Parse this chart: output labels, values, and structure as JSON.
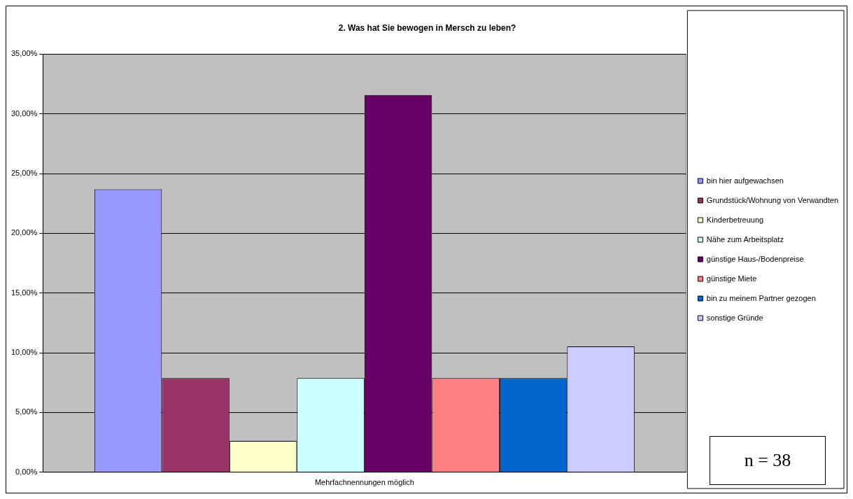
{
  "chart_data": {
    "type": "bar",
    "title": "2. Was hat Sie bewogen in Mersch zu leben?",
    "categories": [
      "Mehrfachnennungen möglich"
    ],
    "series": [
      {
        "name": "bin hier aufgewachsen",
        "color": "#9999ff",
        "values": [
          23.68
        ]
      },
      {
        "name": "Grundstück/Wohnung von Verwandten",
        "color": "#993366",
        "values": [
          7.89
        ]
      },
      {
        "name": "Kinderbetreuung",
        "color": "#ffffcc",
        "values": [
          2.63
        ]
      },
      {
        "name": "Nähe zum Arbeitsplatz",
        "color": "#ccffff",
        "values": [
          7.89
        ]
      },
      {
        "name": "günstige Haus-/Bodenpreise",
        "color": "#660066",
        "values": [
          31.58
        ]
      },
      {
        "name": "günstige Miete",
        "color": "#ff8080",
        "values": [
          7.89
        ]
      },
      {
        "name": "bin zu meinem Partner gezogen",
        "color": "#0066cc",
        "values": [
          7.89
        ]
      },
      {
        "name": "sonstige Gründe",
        "color": "#ccccff",
        "values": [
          10.53
        ]
      }
    ],
    "ylim": [
      0,
      35
    ],
    "yticks": [
      {
        "value": 0,
        "label": "0,00%"
      },
      {
        "value": 5,
        "label": "5,00%"
      },
      {
        "value": 10,
        "label": "10,00%"
      },
      {
        "value": 15,
        "label": "15,00%"
      },
      {
        "value": 20,
        "label": "20,00%"
      },
      {
        "value": 25,
        "label": "25,00%"
      },
      {
        "value": 30,
        "label": "30,00%"
      },
      {
        "value": 35,
        "label": "35,00%"
      }
    ],
    "grid": "y",
    "legend": "right",
    "annotations": [
      "n = 38"
    ]
  }
}
